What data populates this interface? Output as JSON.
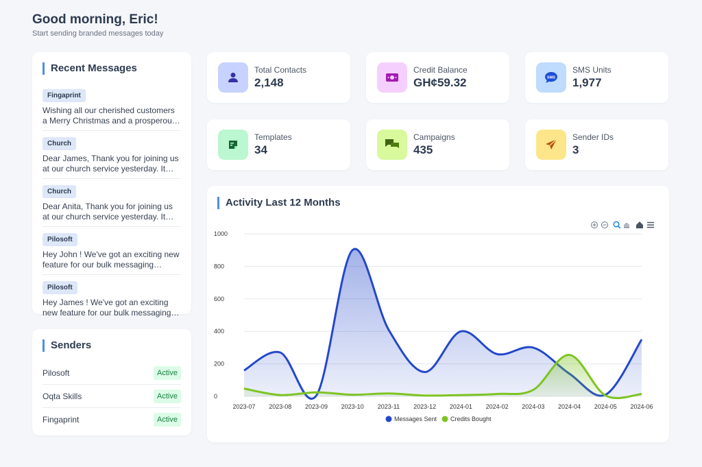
{
  "header": {
    "title": "Good morning, Eric!",
    "subtitle": "Start sending branded messages today"
  },
  "recent_messages": {
    "title": "Recent Messages",
    "items": [
      {
        "sender": "Fingaprint",
        "text": "Wishing all our cherished customers a Merry Christmas and a prosperous New Year."
      },
      {
        "sender": "Church",
        "text": "Dear James, Thank you for joining us at our church service yesterday. It was a blessing."
      },
      {
        "sender": "Church",
        "text": "Dear Anita, Thank you for joining us at our church service yesterday. It was a blessing."
      },
      {
        "sender": "Pilosoft",
        "text": "Hey John ! We've got an exciting new feature for our bulk messaging platform."
      },
      {
        "sender": "Pilosoft",
        "text": "Hey James ! We've got an exciting new feature for our bulk messaging platform."
      }
    ]
  },
  "senders": {
    "title": "Senders",
    "items": [
      {
        "name": "Pilosoft",
        "status": "Active"
      },
      {
        "name": "Oqta Skills",
        "status": "Active"
      },
      {
        "name": "Fingaprint",
        "status": "Active"
      }
    ]
  },
  "stats": [
    {
      "label": "Total Contacts",
      "value": "2,148",
      "icon": "user-icon",
      "bg": "#c7d2fe",
      "fg": "#4338ca"
    },
    {
      "label": "Credit Balance",
      "value": "GH¢59.32",
      "icon": "money-icon",
      "bg": "#f5d0fe",
      "fg": "#a21caf"
    },
    {
      "label": "SMS Units",
      "value": "1,977",
      "icon": "sms-icon",
      "bg": "#bfdbfe",
      "fg": "#1d4ed8"
    },
    {
      "label": "Templates",
      "value": "34",
      "icon": "template-icon",
      "bg": "#bbf7d0",
      "fg": "#15803d"
    },
    {
      "label": "Campaigns",
      "value": "435",
      "icon": "chat-icon",
      "bg": "#d9f99d",
      "fg": "#3f6212"
    },
    {
      "label": "Sender IDs",
      "value": "3",
      "icon": "send-icon",
      "bg": "#fde68a",
      "fg": "#b45309"
    }
  ],
  "chart": {
    "title": "Activity Last 12 Months"
  },
  "chart_data": {
    "type": "area",
    "x": [
      "2023-07",
      "2023-08",
      "2023-09",
      "2023-10",
      "2023-11",
      "2023-12",
      "2024-01",
      "2024-02",
      "2024-03",
      "2024-04",
      "2024-05",
      "2024-06"
    ],
    "ylim": [
      0,
      1000
    ],
    "yticks": [
      "0",
      "200",
      "400",
      "600",
      "800",
      "1000"
    ],
    "grid": true,
    "legend": "bottom",
    "series": [
      {
        "name": "Messages Sent",
        "color": "#2448c9",
        "values": [
          160,
          270,
          5,
          900,
          410,
          150,
          400,
          260,
          300,
          140,
          10,
          350
        ]
      },
      {
        "name": "Credits Bought",
        "color": "#7ec423",
        "values": [
          48,
          8,
          25,
          10,
          18,
          5,
          8,
          15,
          40,
          255,
          5,
          15
        ]
      }
    ]
  }
}
